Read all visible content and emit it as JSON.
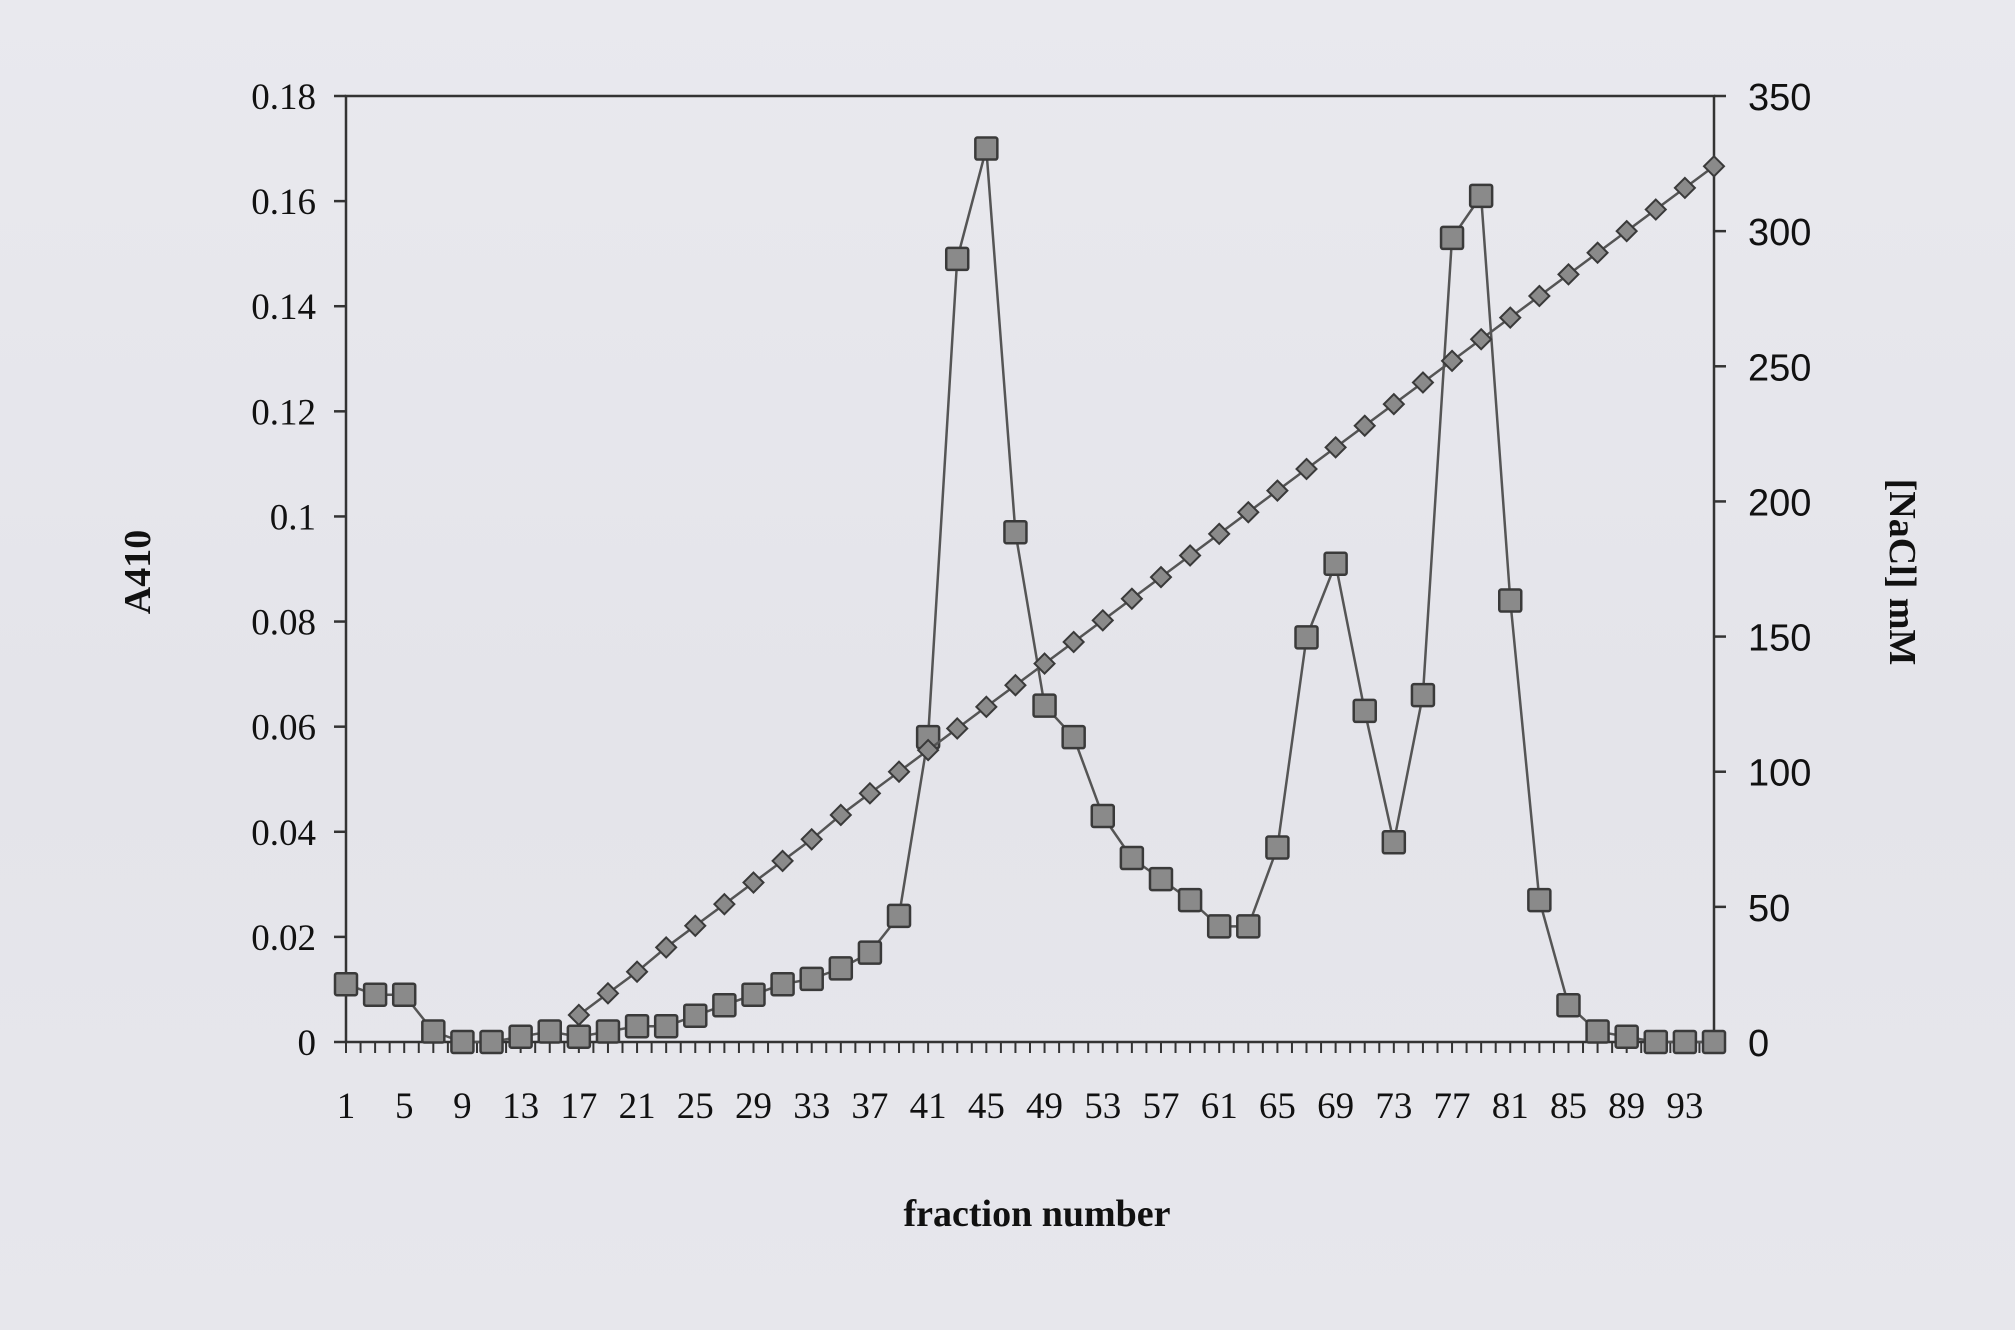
{
  "chart_data": {
    "type": "line",
    "title": "",
    "xlabel": "fraction number",
    "ylabel": "A410",
    "y2label": "[NaCl] mM",
    "x_tick_labels": [
      "1",
      "5",
      "9",
      "13",
      "17",
      "21",
      "25",
      "29",
      "33",
      "37",
      "41",
      "45",
      "49",
      "53",
      "57",
      "61",
      "65",
      "69",
      "73",
      "77",
      "81",
      "85",
      "89",
      "93"
    ],
    "x_range": [
      1,
      95
    ],
    "y_ticks": [
      "0",
      "0.02",
      "0.04",
      "0.06",
      "0.08",
      "0.1",
      "0.12",
      "0.14",
      "0.16",
      "0.18"
    ],
    "ylim": [
      0,
      0.18
    ],
    "y2_ticks": [
      "0",
      "50",
      "100",
      "150",
      "200",
      "250",
      "300",
      "350"
    ],
    "y2lim": [
      0,
      350
    ],
    "grid": false,
    "legend": "none",
    "series": [
      {
        "axis": "left",
        "marker": "square",
        "color": "#8a8a8a",
        "x": [
          1,
          3,
          5,
          7,
          9,
          11,
          13,
          15,
          17,
          19,
          21,
          23,
          25,
          27,
          29,
          31,
          33,
          35,
          37,
          39,
          41,
          43,
          45,
          47,
          49,
          51,
          53,
          55,
          57,
          59,
          61,
          63,
          65,
          67,
          69,
          71,
          73,
          75,
          77,
          79,
          81,
          83,
          85,
          87,
          89,
          91,
          93,
          95
        ],
        "values": [
          0.011,
          0.009,
          0.009,
          0.002,
          0.0,
          0.0,
          0.001,
          0.002,
          0.001,
          0.002,
          0.003,
          0.003,
          0.005,
          0.007,
          0.009,
          0.011,
          0.012,
          0.014,
          0.017,
          0.024,
          0.058,
          0.149,
          0.17,
          0.097,
          0.064,
          0.058,
          0.043,
          0.035,
          0.031,
          0.027,
          0.022,
          0.022,
          0.037,
          0.077,
          0.091,
          0.063,
          0.038,
          0.066,
          0.153,
          0.161,
          0.084,
          0.027,
          0.007,
          0.002,
          0.001,
          0.0,
          0.0,
          0.0
        ]
      },
      {
        "axis": "right",
        "marker": "diamond",
        "color": "#8a8a8a",
        "x": [
          17,
          19,
          21,
          23,
          25,
          27,
          29,
          31,
          33,
          35,
          37,
          39,
          41,
          43,
          45,
          47,
          49,
          51,
          53,
          55,
          57,
          59,
          61,
          63,
          65,
          67,
          69,
          71,
          73,
          75,
          77,
          79,
          81,
          83,
          85,
          87,
          89,
          91,
          93,
          95
        ],
        "values": [
          10,
          18,
          26,
          35,
          43,
          51,
          59,
          67,
          75,
          84,
          92,
          100,
          108,
          116,
          124,
          132,
          140,
          148,
          156,
          164,
          172,
          180,
          188,
          196,
          204,
          212,
          220,
          228,
          236,
          244,
          252,
          260,
          268,
          276,
          284,
          292,
          300,
          308,
          316,
          324
        ]
      }
    ]
  }
}
